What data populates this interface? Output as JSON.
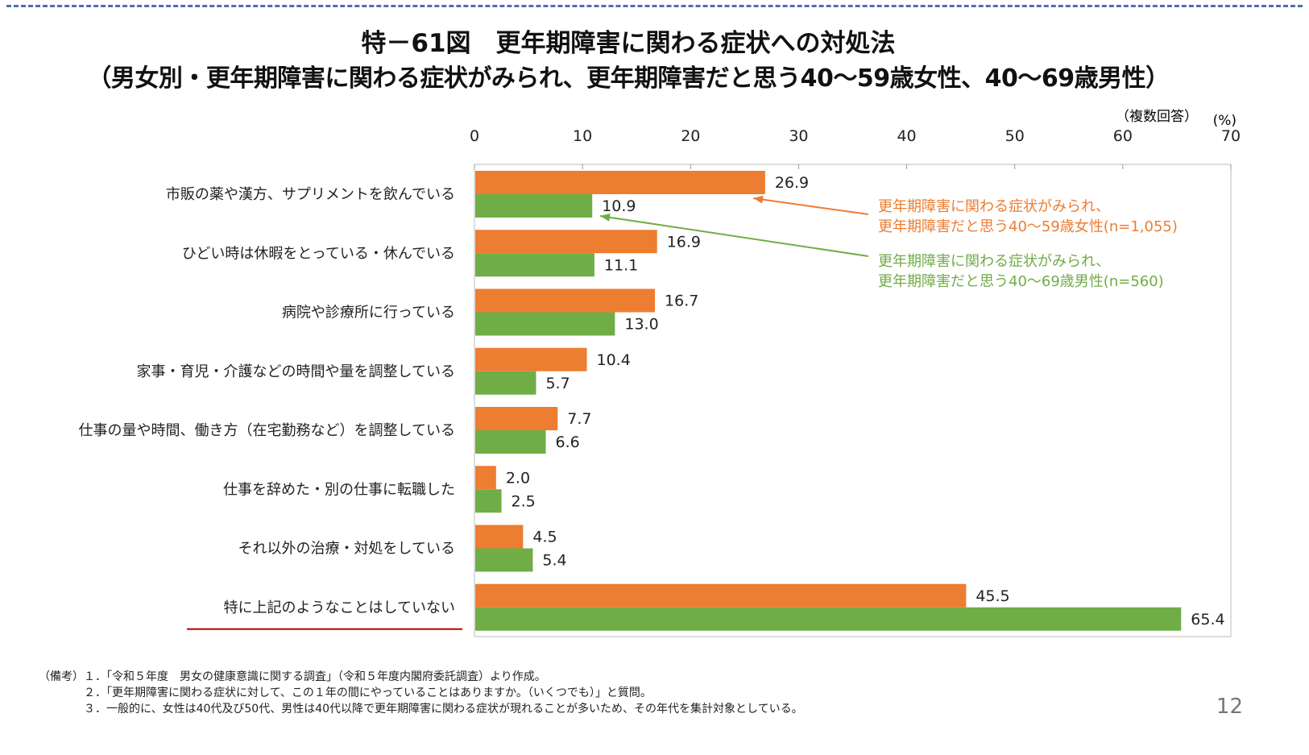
{
  "title": "特－61図　更年期障害に関わる症状への対処法",
  "subtitle": "（男女別・更年期障害に関わる症状がみられ、更年期障害だと思う40～59歳女性、40～69歳男性）",
  "chart_data": {
    "type": "bar",
    "orientation": "horizontal",
    "note": "（複数回答）",
    "unit": "(%)",
    "xlim": [
      0,
      70
    ],
    "xticks": [
      0,
      10,
      20,
      30,
      40,
      50,
      60,
      70
    ],
    "grid": false,
    "categories": [
      "市販の薬や漢方、サプリメントを飲んでいる",
      "ひどい時は休暇をとっている・休んでいる",
      "病院や診療所に行っている",
      "家事・育児・介護などの時間や量を調整している",
      "仕事の量や時間、働き方（在宅勤務など）を調整している",
      "仕事を辞めた・別の仕事に転職した",
      "それ以外の治療・対処をしている",
      "特に上記のようなことはしていない"
    ],
    "series": [
      {
        "name": "更年期障害に関わる症状がみられ、\n更年期障害だと思う40～59歳女性(n=1,055)",
        "color": "#ed7d31",
        "values": [
          26.9,
          16.9,
          16.7,
          10.4,
          7.7,
          2.0,
          4.5,
          45.5
        ]
      },
      {
        "name": "更年期障害に関わる症状がみられ、\n更年期障害だと思う40～69歳男性(n=560)",
        "color": "#70ad47",
        "values": [
          10.9,
          11.1,
          13.0,
          5.7,
          6.6,
          2.5,
          5.4,
          65.4
        ]
      }
    ],
    "underlined_category_color": "#c00000"
  },
  "notes": [
    "（備考）１．「令和５年度　男女の健康意識に関する調査」（令和５年度内閣府委託調査）より作成。",
    "　　　　２．「更年期障害に関わる症状に対して、この１年の間にやっていることはありますか。（いくつでも）」と質問。",
    "　　　　３．一般的に、女性は40代及び50代、男性は40代以降で更年期障害に関わる症状が現れることが多いため、その年代を集計対象としている。"
  ],
  "page_number": "12"
}
